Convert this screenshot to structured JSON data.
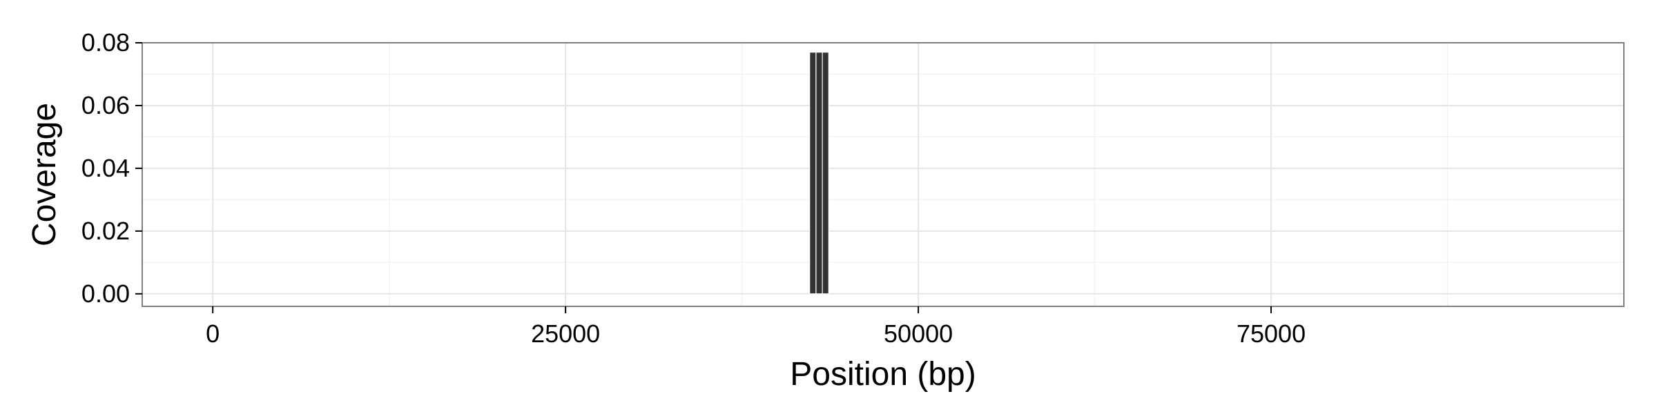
{
  "chart_data": {
    "type": "bar",
    "title": "",
    "xlabel": "Position (bp)",
    "ylabel": "Coverage",
    "xlim": [
      -5000,
      100000
    ],
    "ylim": [
      -0.004,
      0.08
    ],
    "x_ticks": [
      0,
      25000,
      50000,
      75000
    ],
    "x_tick_labels": [
      "0",
      "25000",
      "50000",
      "75000"
    ],
    "y_ticks": [
      0.0,
      0.02,
      0.04,
      0.06,
      0.08
    ],
    "y_tick_labels": [
      "0.00",
      "0.02",
      "0.04",
      "0.06",
      "0.08"
    ],
    "grid": true,
    "bar_color": "#333333",
    "series": [
      {
        "bars": [
          {
            "x0": 42300,
            "x1": 42750,
            "value": 0.077
          },
          {
            "x0": 42750,
            "x1": 43200,
            "value": 0.077
          },
          {
            "x0": 43200,
            "x1": 43650,
            "value": 0.077
          }
        ]
      }
    ]
  }
}
